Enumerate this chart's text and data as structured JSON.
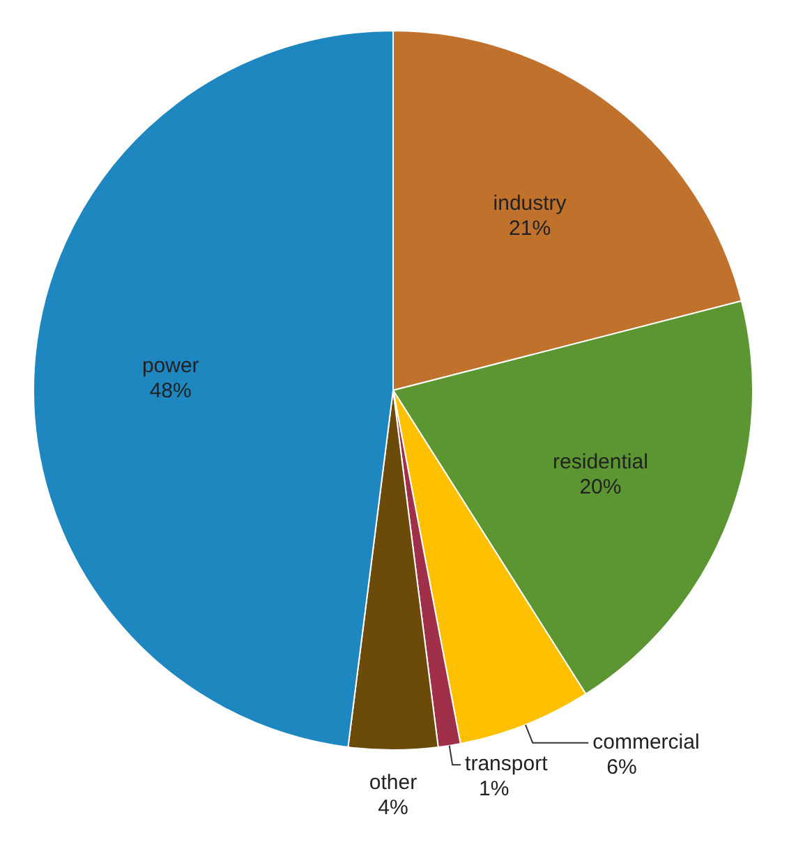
{
  "chart_data": {
    "type": "pie",
    "categories": [
      "industry",
      "residential",
      "commercial",
      "transport",
      "other",
      "power"
    ],
    "values": [
      21,
      20,
      6,
      1,
      4,
      48
    ],
    "value_labels": [
      "21%",
      "20%",
      "6%",
      "1%",
      "4%",
      "48%"
    ],
    "colors": [
      "#c0722c",
      "#5b9632",
      "#ffc000",
      "#a0304a",
      "#6b4a0a",
      "#1f87c0"
    ]
  }
}
